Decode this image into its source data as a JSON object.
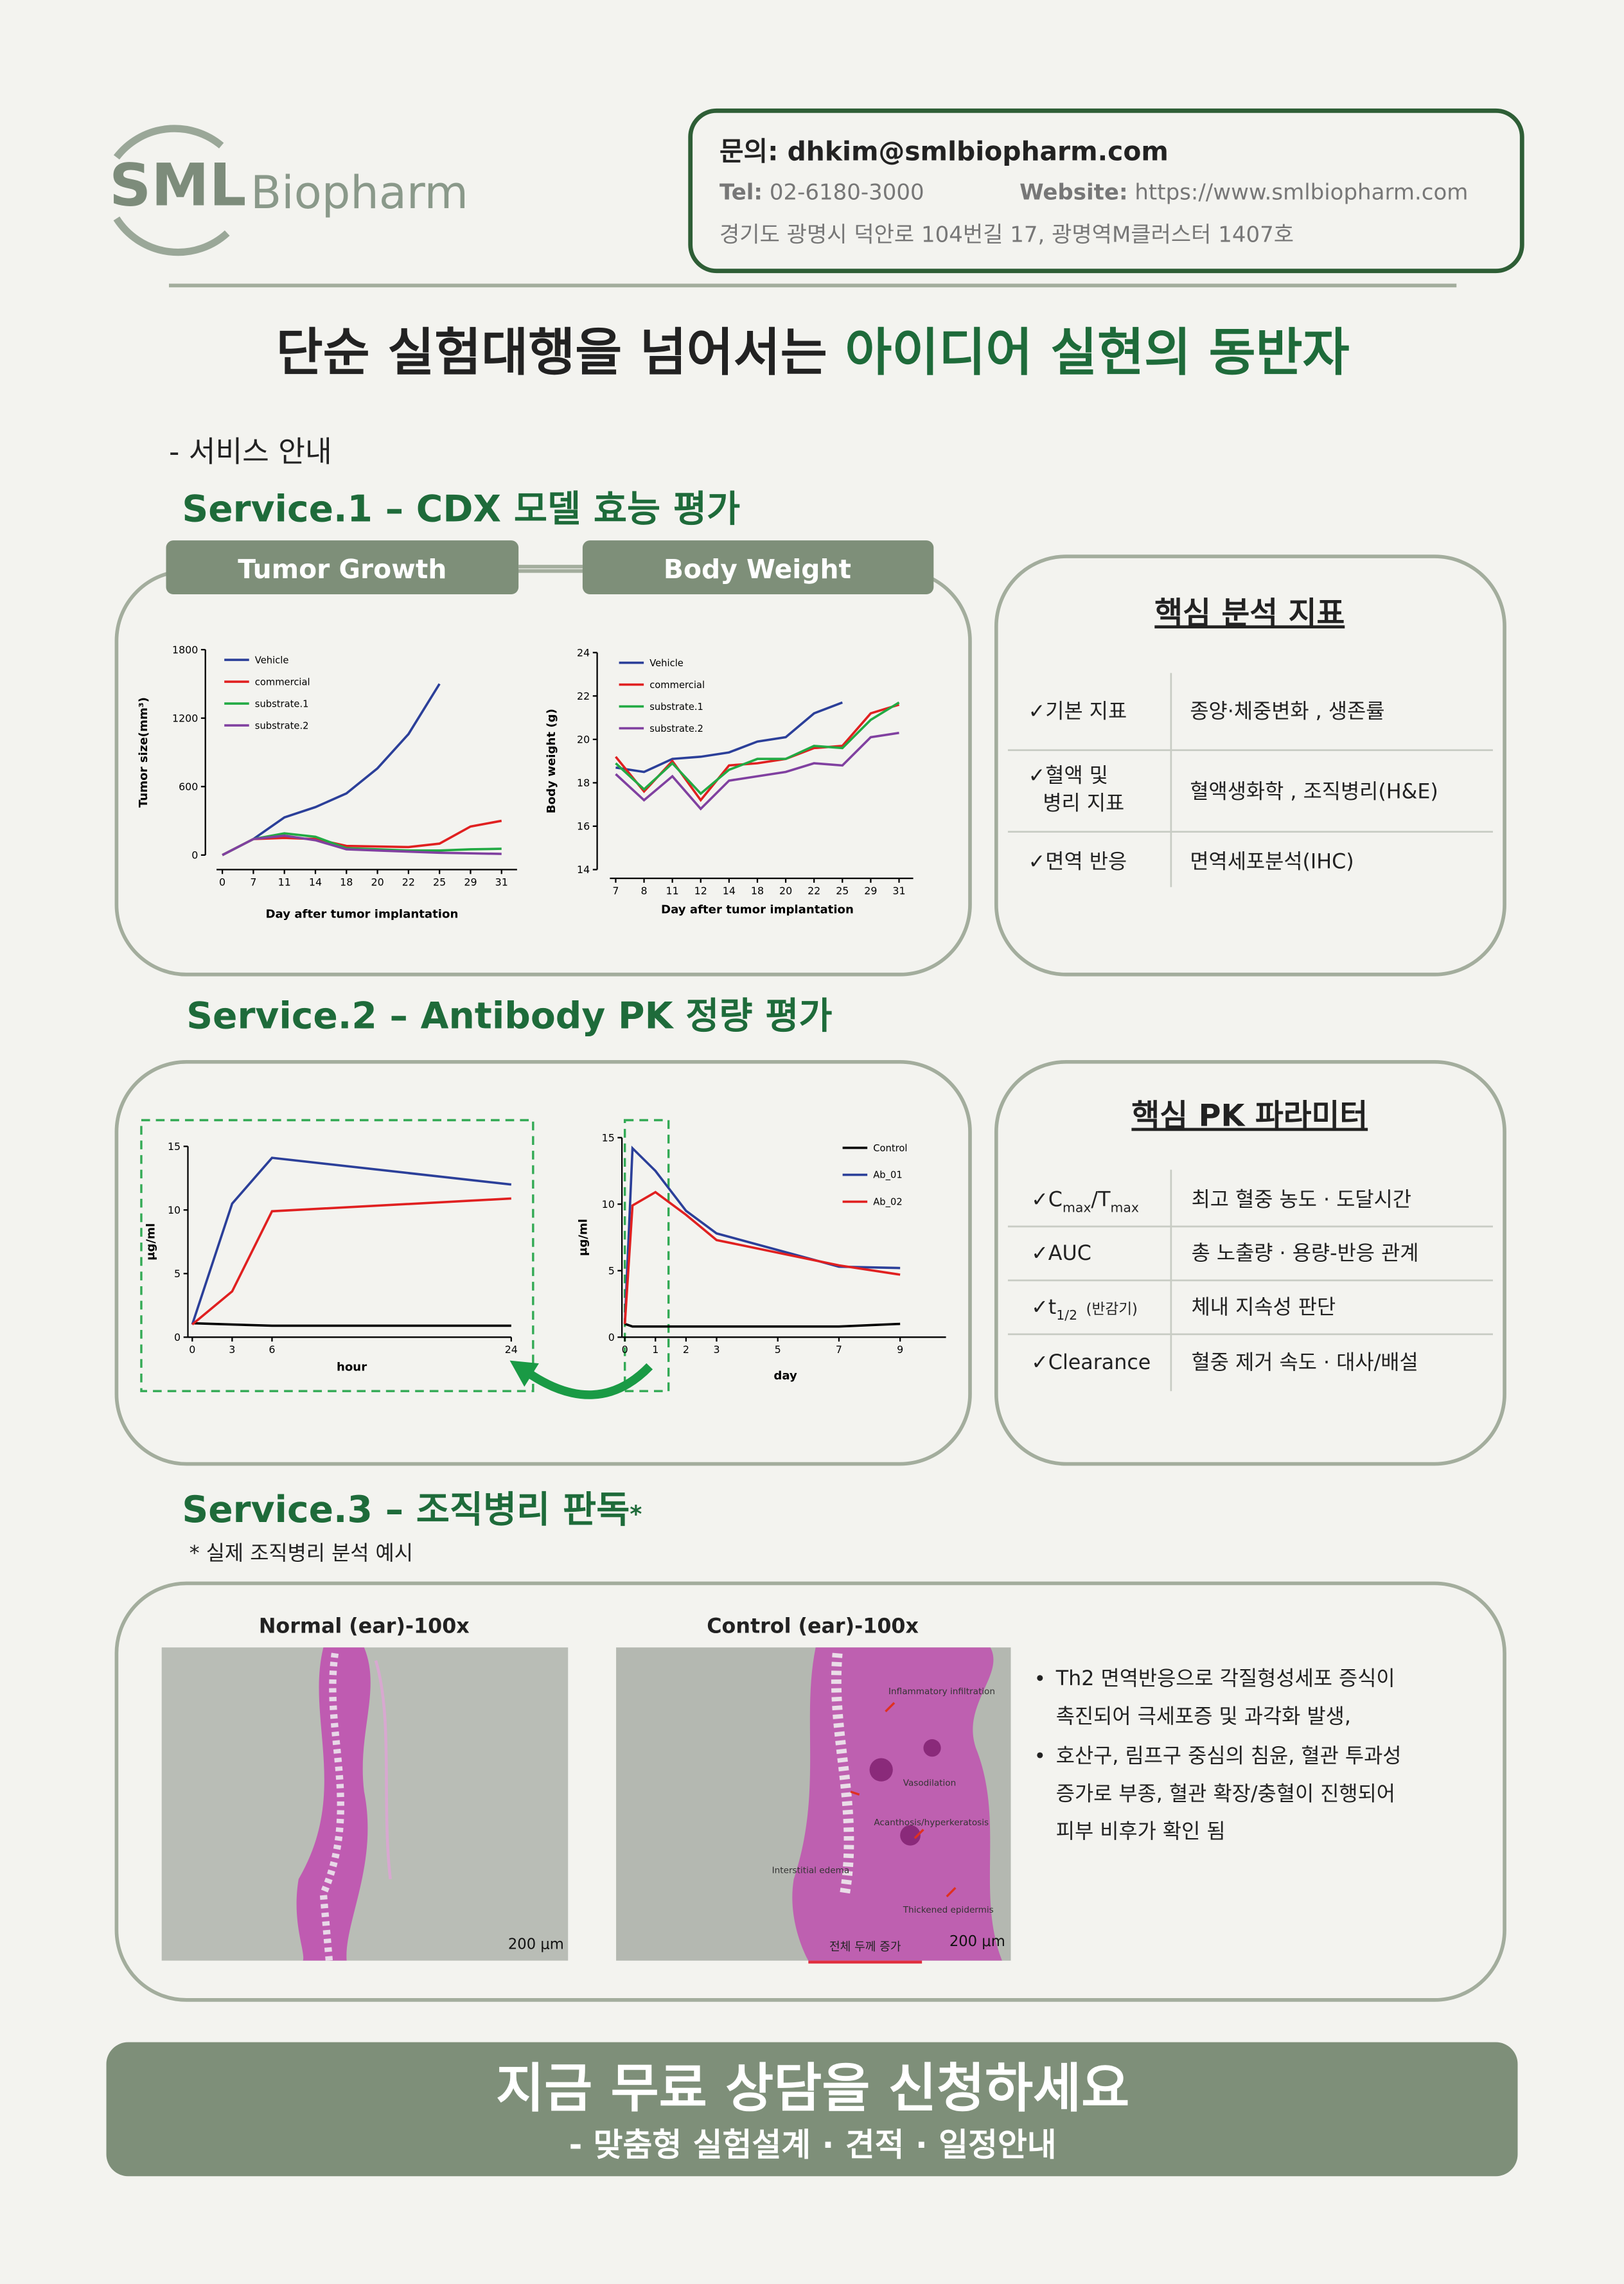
{
  "header": {
    "logo_mark": "SML",
    "logo_text": "Biopharm",
    "inquiry": "문의: dhkim@smlbiopharm.com",
    "tel_label": "Tel:",
    "tel": "02-6180-3000",
    "website_label": "Website:",
    "website": "https://www.smlbiopharm.com",
    "address": "경기도 광명시 덕안로 104번길 17, 광명역M클러스터 1407호"
  },
  "headline": {
    "lead": "단순 실험대행을 넘어서는 ",
    "highlight": "아이디어 실현의 동반자"
  },
  "intro": "- 서비스 안내",
  "service1": {
    "title": "Service.1 – CDX 모델 효능 평가",
    "tabs": [
      "Tumor Growth",
      "Body Weight"
    ],
    "panel": {
      "title": "핵심 분석 지표",
      "rows": [
        {
          "label": [
            "✓기본 지표"
          ],
          "desc": "종양·체중변화 , 생존률"
        },
        {
          "label": [
            "✓혈액 및",
            "병리 지표"
          ],
          "desc": "혈액생화학 , 조직병리(H&E)"
        },
        {
          "label": [
            "✓면역 반응"
          ],
          "desc": "면역세포분석(IHC)"
        }
      ]
    }
  },
  "service2": {
    "title": "Service.2 – Antibody PK 정량 평가",
    "panel": {
      "title": "핵심 PK 파라미터",
      "rows": [
        {
          "label": [
            "✓C",
            "max",
            "/T",
            "max"
          ],
          "desc": "최고 혈중 농도 · 도달시간"
        },
        {
          "label": [
            "✓AUC"
          ],
          "desc": "총 노출량 · 용량-반응 관계"
        },
        {
          "label": [
            "✓t",
            "1/2",
            "(반감기)"
          ],
          "desc": "체내 지속성 판단"
        },
        {
          "label": [
            "✓Clearance"
          ],
          "desc": "혈중 제거 속도 · 대사/배설"
        }
      ]
    }
  },
  "service3": {
    "title": "Service.3 – 조직병리 판독",
    "mark": "*",
    "note": "* 실제 조직병리 분석 예시",
    "images": [
      {
        "caption": "Normal (ear)-100x",
        "scale": "200 μm"
      },
      {
        "caption": "Control (ear)-100x",
        "scale": "200 μm",
        "annotations": [
          "Inflammatory infiltration",
          "Vasodilation",
          "Acanthosis/hyperkeratosis",
          "Interstitial edema",
          "Thickened epidermis"
        ],
        "summary": "전체 두께 증가"
      }
    ],
    "bullets": [
      [
        "Th2 면역반응으로 각질형성세포 증식이",
        "촉진되어 극세포증 및 과각화 발생,"
      ],
      [
        "호산구, 림프구 중심의 침윤, 혈관 투과성",
        "증가로 부종, 혈관 확장/충혈이 진행되어",
        "피부 비후가 확인 됨"
      ]
    ]
  },
  "cta": {
    "title": "지금 무료 상담을 신청하세요",
    "subtitle": "- 맞춤형 실험설계 · 견적 · 일정안내"
  },
  "chart_data": [
    {
      "type": "line",
      "xlabel": "Day after tumor implantation",
      "ylabel": "Tumor size(mm³)",
      "categories": [
        "0",
        "7",
        "11",
        "14",
        "18",
        "20",
        "22",
        "25",
        "29",
        "31"
      ],
      "ylim": [
        0,
        1800
      ],
      "yticks": [
        0,
        600,
        1200,
        1800
      ],
      "legend": "upper left",
      "series": [
        {
          "name": "Vehicle",
          "color": "#2b3f99",
          "values": [
            0,
            140,
            330,
            420,
            540,
            760,
            1060,
            1500,
            null,
            null
          ]
        },
        {
          "name": "commercial",
          "color": "#e02020",
          "values": [
            0,
            140,
            150,
            140,
            80,
            75,
            70,
            100,
            250,
            300
          ]
        },
        {
          "name": "substrate.1",
          "color": "#22aa44",
          "values": [
            0,
            140,
            190,
            160,
            60,
            50,
            40,
            40,
            50,
            55
          ]
        },
        {
          "name": "substrate.2",
          "color": "#8040a0",
          "values": [
            0,
            140,
            170,
            130,
            50,
            40,
            30,
            20,
            15,
            10
          ]
        }
      ]
    },
    {
      "type": "line",
      "xlabel": "Day after tumor implantation",
      "ylabel": "Body weight (g)",
      "categories": [
        "7",
        "8",
        "11",
        "12",
        "14",
        "18",
        "20",
        "22",
        "25",
        "29",
        "31"
      ],
      "ylim": [
        14,
        24
      ],
      "yticks": [
        14,
        16,
        18,
        20,
        22,
        24
      ],
      "legend": "upper left",
      "series": [
        {
          "name": "Vehicle",
          "color": "#2b3f99",
          "values": [
            18.7,
            18.5,
            19.1,
            19.2,
            19.4,
            19.9,
            20.1,
            21.2,
            21.7,
            null,
            null
          ]
        },
        {
          "name": "commercial",
          "color": "#e02020",
          "values": [
            19.2,
            17.6,
            19.0,
            17.2,
            18.8,
            18.9,
            19.1,
            19.6,
            19.7,
            21.2,
            21.6
          ]
        },
        {
          "name": "substrate.1",
          "color": "#22aa44",
          "values": [
            18.9,
            17.7,
            18.9,
            17.5,
            18.6,
            19.1,
            19.1,
            19.7,
            19.6,
            20.9,
            21.7
          ]
        },
        {
          "name": "substrate.2",
          "color": "#8040a0",
          "values": [
            18.4,
            17.2,
            18.3,
            16.8,
            18.1,
            18.3,
            18.5,
            18.9,
            18.8,
            20.1,
            20.3
          ]
        }
      ]
    },
    {
      "type": "line",
      "xlabel": "hour",
      "ylabel": "μg/ml",
      "xlim": [
        0,
        24
      ],
      "xticks": [
        0,
        3,
        6,
        24
      ],
      "ylim": [
        0,
        15
      ],
      "yticks": [
        0,
        5,
        10,
        15
      ],
      "series": [
        {
          "color": "#000000",
          "x": [
            0,
            3,
            6,
            24
          ],
          "values": [
            1.1,
            1.0,
            0.9,
            0.9
          ]
        },
        {
          "color": "#2b3f99",
          "x": [
            0,
            3,
            6,
            24
          ],
          "values": [
            1.0,
            10.5,
            14.1,
            12.0
          ]
        },
        {
          "color": "#e02020",
          "x": [
            0,
            3,
            6,
            24
          ],
          "values": [
            1.0,
            3.6,
            9.9,
            10.9
          ]
        }
      ]
    },
    {
      "type": "line",
      "xlabel": "day",
      "ylabel": "μg/ml",
      "xlim": [
        0,
        10.5
      ],
      "xticks": [
        0,
        1,
        2,
        3,
        5,
        7,
        9
      ],
      "ylim": [
        0,
        15
      ],
      "yticks": [
        0,
        5,
        10,
        15
      ],
      "legend": "upper right",
      "series": [
        {
          "name": "Control",
          "color": "#000000",
          "x": [
            0,
            0.25,
            1,
            2,
            3,
            5,
            7,
            9
          ],
          "values": [
            1.0,
            0.8,
            0.8,
            0.8,
            0.8,
            0.8,
            0.8,
            1.0
          ]
        },
        {
          "name": "Ab_01",
          "color": "#2b3f99",
          "x": [
            0,
            0.25,
            1,
            2,
            3,
            7,
            9
          ],
          "values": [
            1.0,
            14.2,
            12.5,
            9.5,
            7.8,
            5.3,
            5.2
          ]
        },
        {
          "name": "Ab_02",
          "color": "#e02020",
          "x": [
            0,
            0.25,
            1,
            2,
            3,
            7,
            9
          ],
          "values": [
            1.0,
            9.9,
            10.9,
            9.2,
            7.3,
            5.4,
            4.7
          ]
        }
      ]
    }
  ]
}
